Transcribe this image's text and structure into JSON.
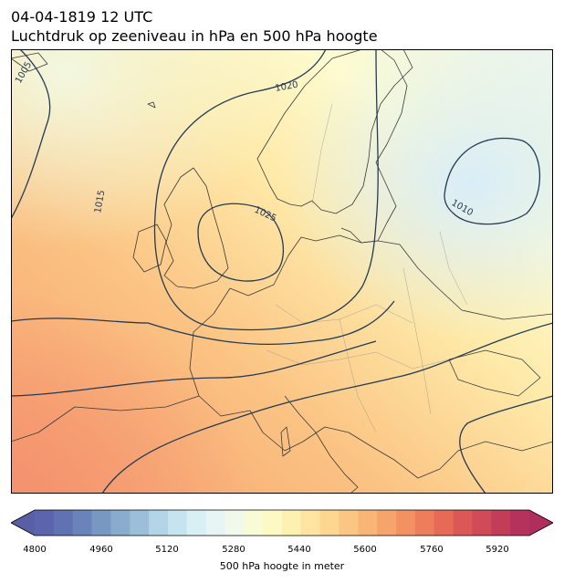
{
  "header": {
    "datetime": "04-04-1819 12 UTC",
    "subtitle": "Luchtdruk op zeeniveau in hPa en 500 hPa hoogte"
  },
  "map": {
    "region": "Europe",
    "field_colors": {
      "cold_low": "#e0f0f8",
      "mid": "#fefac8",
      "warm": "#f8bd85",
      "hot": "#f69a78"
    },
    "isobar_color": "#243b55",
    "isobar_labels": [
      "1005",
      "1020",
      "1015",
      "1025",
      "1010"
    ]
  },
  "colorbar": {
    "label": "500 hPa hoogte in meter",
    "ticks": [
      "4800",
      "4960",
      "5120",
      "5280",
      "5440",
      "5600",
      "5760",
      "5920"
    ],
    "colors": [
      "#5b64ad",
      "#6172b3",
      "#6a84bb",
      "#7898c3",
      "#88abce",
      "#9cbed9",
      "#b2d4e6",
      "#c6e4ef",
      "#d8eff4",
      "#e6f5f4",
      "#f1f9ea",
      "#f8fbd6",
      "#fdf9c4",
      "#fef0b1",
      "#fee4a0",
      "#fdd690",
      "#fbc681",
      "#f9b576",
      "#f6a36c",
      "#f39163",
      "#ee7d5b",
      "#e66a56",
      "#dc5856",
      "#d04a58",
      "#c23d58",
      "#b4325c"
    ]
  }
}
